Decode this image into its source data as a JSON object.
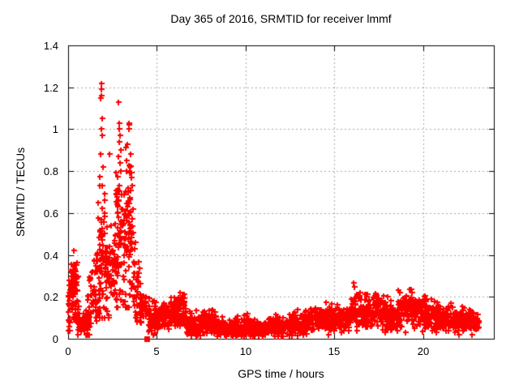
{
  "chart_data": {
    "type": "scatter",
    "title": "Day 365 of 2016, SRMTID for receiver lmmf",
    "xlabel": "GPS time / hours",
    "ylabel": "SRMTID / TECUs",
    "xlim": [
      0,
      24
    ],
    "ylim": [
      0,
      1.4
    ],
    "xticks": [
      0,
      5,
      10,
      15,
      20
    ],
    "xtick_labels": [
      "0",
      "5",
      "10",
      "15",
      "20"
    ],
    "yticks": [
      0,
      0.2,
      0.4,
      0.6,
      0.8,
      1,
      1.2,
      1.4
    ],
    "ytick_labels": [
      "0",
      "0.2",
      "0.4",
      "0.6",
      "0.8",
      "1",
      "1.2",
      "1.4"
    ],
    "grid": true,
    "grid_style": "dotted",
    "legend": "none",
    "marker": "plus",
    "marker_size_px": 7,
    "marker_color": "#ff0000",
    "grid_color": "#a8a8a8",
    "frame_color": "#000000",
    "background": "#ffffff",
    "max_value": 1.22,
    "max_value_time": 1.86,
    "outlier_point": {
      "marker": "filled-square",
      "x": 4.43,
      "y": 0.0
    },
    "peak_points": [
      [
        1.86,
        1.22
      ],
      [
        1.88,
        1.19
      ],
      [
        1.87,
        1.16
      ],
      [
        1.85,
        1.15
      ],
      [
        1.9,
        1.05
      ],
      [
        1.88,
        1.0
      ],
      [
        1.92,
        0.97
      ],
      [
        1.84,
        0.88
      ],
      [
        1.95,
        0.82
      ],
      [
        1.78,
        0.73
      ],
      [
        1.7,
        0.65
      ],
      [
        2.33,
        0.88
      ],
      [
        2.85,
        1.13
      ],
      [
        2.9,
        1.03
      ],
      [
        2.88,
        1.0
      ],
      [
        2.93,
        0.97
      ],
      [
        2.86,
        0.94
      ],
      [
        2.95,
        0.9
      ],
      [
        2.83,
        0.87
      ],
      [
        2.91,
        0.84
      ],
      [
        2.97,
        0.8
      ],
      [
        2.88,
        0.73
      ],
      [
        3.42,
        1.03
      ],
      [
        3.45,
        1.02
      ],
      [
        3.44,
        1.0
      ],
      [
        3.35,
        0.93
      ],
      [
        3.5,
        0.88
      ],
      [
        3.3,
        0.85
      ],
      [
        3.48,
        0.82
      ],
      [
        3.27,
        0.8
      ],
      [
        3.55,
        0.77
      ],
      [
        3.6,
        0.73
      ],
      [
        3.38,
        0.7
      ],
      [
        3.65,
        0.62
      ]
    ],
    "segment_fields": [
      "x_start",
      "x_end",
      "n_points",
      "y_center_start",
      "y_center_end",
      "y_spread",
      "y_min",
      "y_max"
    ],
    "density_segments": [
      [
        0.0,
        0.12,
        20,
        0.15,
        0.18,
        0.12,
        0.04,
        0.32
      ],
      [
        0.12,
        0.55,
        70,
        0.27,
        0.27,
        0.1,
        0.1,
        0.42
      ],
      [
        0.3,
        0.62,
        15,
        0.12,
        0.1,
        0.06,
        0.05,
        0.2
      ],
      [
        0.55,
        1.18,
        65,
        0.07,
        0.07,
        0.05,
        0.02,
        0.16
      ],
      [
        1.1,
        1.6,
        45,
        0.18,
        0.3,
        0.14,
        0.05,
        0.52
      ],
      [
        1.6,
        2.1,
        75,
        0.4,
        0.42,
        0.28,
        0.1,
        0.95
      ],
      [
        2.1,
        2.6,
        55,
        0.33,
        0.35,
        0.18,
        0.1,
        0.8
      ],
      [
        2.6,
        3.1,
        70,
        0.5,
        0.5,
        0.3,
        0.15,
        0.97
      ],
      [
        3.1,
        3.65,
        80,
        0.5,
        0.48,
        0.3,
        0.15,
        0.97
      ],
      [
        3.65,
        4.1,
        45,
        0.3,
        0.2,
        0.16,
        0.08,
        0.62
      ],
      [
        4.1,
        4.55,
        35,
        0.14,
        0.12,
        0.07,
        0.03,
        0.3
      ],
      [
        4.55,
        5.3,
        70,
        0.1,
        0.1,
        0.06,
        0.02,
        0.24
      ],
      [
        5.3,
        6.15,
        85,
        0.12,
        0.13,
        0.07,
        0.02,
        0.28
      ],
      [
        6.15,
        6.65,
        55,
        0.14,
        0.12,
        0.08,
        0.03,
        0.3
      ],
      [
        6.65,
        7.6,
        95,
        0.07,
        0.07,
        0.05,
        0.015,
        0.16
      ],
      [
        7.6,
        8.4,
        85,
        0.09,
        0.07,
        0.05,
        0.015,
        0.16
      ],
      [
        8.4,
        9.4,
        100,
        0.05,
        0.05,
        0.035,
        0.01,
        0.12
      ],
      [
        9.4,
        10.4,
        100,
        0.06,
        0.055,
        0.04,
        0.01,
        0.14
      ],
      [
        10.4,
        11.3,
        90,
        0.05,
        0.055,
        0.035,
        0.01,
        0.12
      ],
      [
        11.3,
        12.4,
        100,
        0.06,
        0.06,
        0.04,
        0.01,
        0.14
      ],
      [
        12.4,
        13.4,
        100,
        0.065,
        0.075,
        0.045,
        0.015,
        0.16
      ],
      [
        13.4,
        14.4,
        95,
        0.08,
        0.1,
        0.05,
        0.02,
        0.2
      ],
      [
        14.4,
        15.4,
        95,
        0.1,
        0.1,
        0.055,
        0.02,
        0.25
      ],
      [
        15.4,
        15.95,
        50,
        0.09,
        0.1,
        0.05,
        0.02,
        0.22
      ],
      [
        15.95,
        16.5,
        60,
        0.15,
        0.14,
        0.08,
        0.04,
        0.31
      ],
      [
        16.5,
        17.25,
        70,
        0.12,
        0.13,
        0.07,
        0.03,
        0.27
      ],
      [
        17.25,
        17.95,
        70,
        0.14,
        0.13,
        0.075,
        0.03,
        0.29
      ],
      [
        17.95,
        18.6,
        65,
        0.1,
        0.11,
        0.06,
        0.02,
        0.24
      ],
      [
        18.6,
        19.4,
        80,
        0.14,
        0.14,
        0.075,
        0.03,
        0.29
      ],
      [
        19.4,
        20.2,
        80,
        0.13,
        0.13,
        0.07,
        0.03,
        0.28
      ],
      [
        20.2,
        21.0,
        80,
        0.11,
        0.1,
        0.06,
        0.02,
        0.24
      ],
      [
        21.0,
        22.0,
        90,
        0.1,
        0.09,
        0.05,
        0.02,
        0.2
      ],
      [
        22.0,
        22.8,
        90,
        0.085,
        0.08,
        0.045,
        0.02,
        0.18
      ],
      [
        22.8,
        23.15,
        40,
        0.08,
        0.08,
        0.04,
        0.02,
        0.14
      ]
    ],
    "seed": 1337
  }
}
